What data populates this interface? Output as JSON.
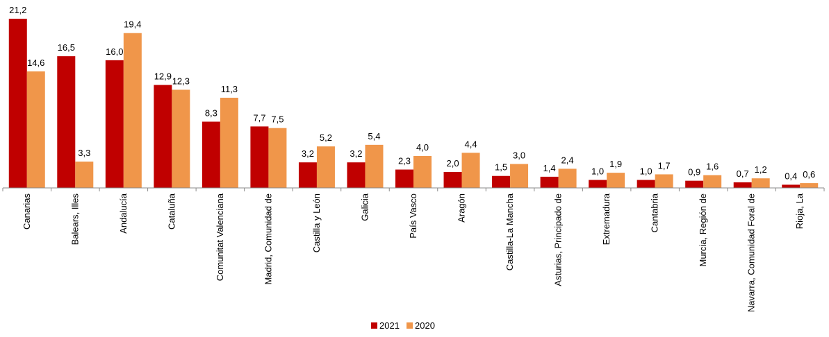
{
  "chart_data": {
    "type": "bar",
    "categories": [
      "Canarias",
      "Balears, Illes",
      "Andalucía",
      "Cataluña",
      "Comunitat Valenciana",
      "Madrid, Comunidad de",
      "Castilla y León",
      "Galicia",
      "País Vasco",
      "Aragón",
      "Castilla-La Mancha",
      "Asturias, Principado de",
      "Extremadura",
      "Cantabria",
      "Murcia, Región de",
      "Navarra, Comunidad Foral de",
      "Rioja, La"
    ],
    "series": [
      {
        "name": "2021",
        "color": "#C00000",
        "values": [
          21.2,
          16.5,
          16.0,
          12.9,
          8.3,
          7.7,
          3.2,
          3.2,
          2.3,
          2.0,
          1.5,
          1.4,
          1.0,
          1.0,
          0.9,
          0.7,
          0.4
        ],
        "labels": [
          "21,2",
          "16,5",
          "16,0",
          "12,9",
          "8,3",
          "7,7",
          "3,2",
          "3,2",
          "2,3",
          "2,0",
          "1,5",
          "1,4",
          "1,0",
          "1,0",
          "0,9",
          "0,7",
          "0,4"
        ]
      },
      {
        "name": "2020",
        "color": "#F0964A",
        "values": [
          14.6,
          3.3,
          19.4,
          12.3,
          11.3,
          7.5,
          5.2,
          5.4,
          4.0,
          4.4,
          3.0,
          2.4,
          1.9,
          1.7,
          1.6,
          1.2,
          0.6
        ],
        "labels": [
          "14,6",
          "3,3",
          "19,4",
          "12,3",
          "11,3",
          "7,5",
          "5,2",
          "5,4",
          "4,0",
          "4,4",
          "3,0",
          "2,4",
          "1,9",
          "1,7",
          "1,6",
          "1,2",
          "0,6"
        ]
      }
    ],
    "ylim": [
      0,
      21.2
    ],
    "legend": "bottom-center",
    "grid": false
  }
}
